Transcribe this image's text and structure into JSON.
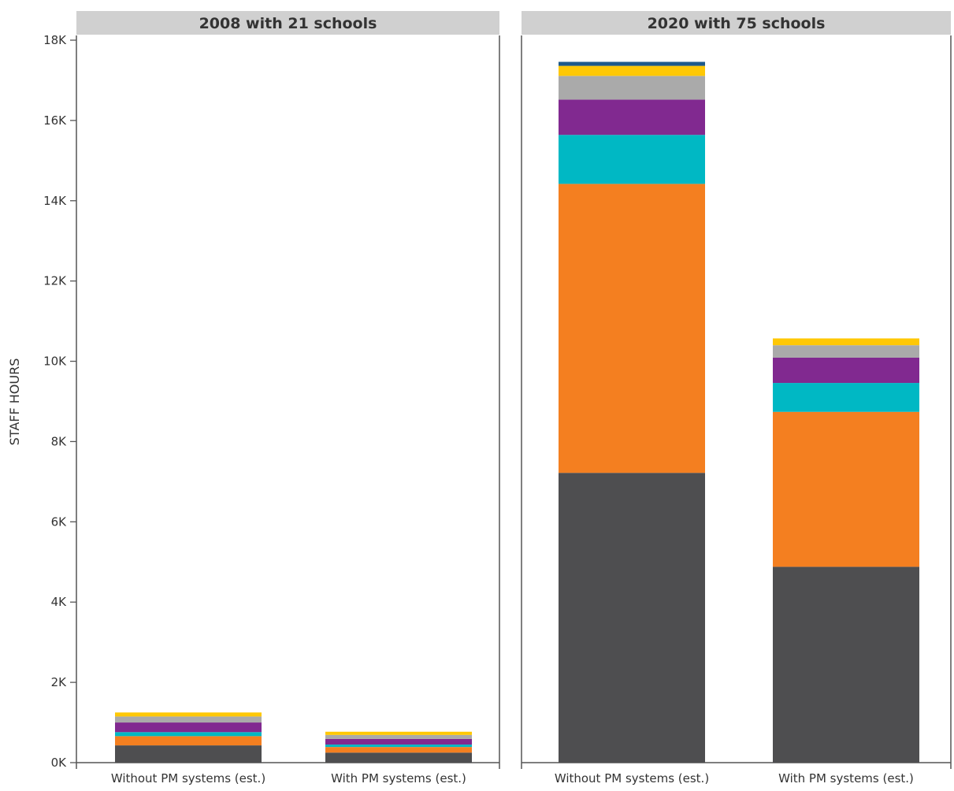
{
  "chart_data": {
    "type": "bar",
    "stacked": true,
    "ylabel": "STAFF HOURS",
    "ylim": [
      0,
      18000
    ],
    "y_ticks": [
      "0K",
      "2K",
      "4K",
      "6K",
      "8K",
      "10K",
      "12K",
      "14K",
      "16K",
      "18K"
    ],
    "y_tick_values": [
      0,
      2000,
      4000,
      6000,
      8000,
      10000,
      12000,
      14000,
      16000,
      18000
    ],
    "categories": [
      "Without PM systems (est.)",
      "With PM systems (est.)"
    ],
    "series_colors": [
      "#4e4e50",
      "#f47f20",
      "#00b8c4",
      "#812990",
      "#aaaaaa",
      "#ffc805",
      "#1d5a8c"
    ],
    "panels": [
      {
        "title": "2008 with 21 schools",
        "bars": [
          {
            "category": "Without PM systems (est.)",
            "segments": [
              430,
              230,
              100,
              240,
              150,
              100,
              0
            ]
          },
          {
            "category": "With PM systems (est.)",
            "segments": [
              250,
              140,
              60,
              140,
              100,
              80,
              0
            ]
          }
        ]
      },
      {
        "title": "2020 with 75 schools",
        "bars": [
          {
            "category": "Without PM systems (est.)",
            "segments": [
              7220,
              7200,
              1220,
              880,
              590,
              250,
              100
            ]
          },
          {
            "category": "With PM systems (est.)",
            "segments": [
              4880,
              3860,
              720,
              630,
              310,
              170,
              0
            ]
          }
        ]
      }
    ],
    "grid": false,
    "legend": "none"
  }
}
